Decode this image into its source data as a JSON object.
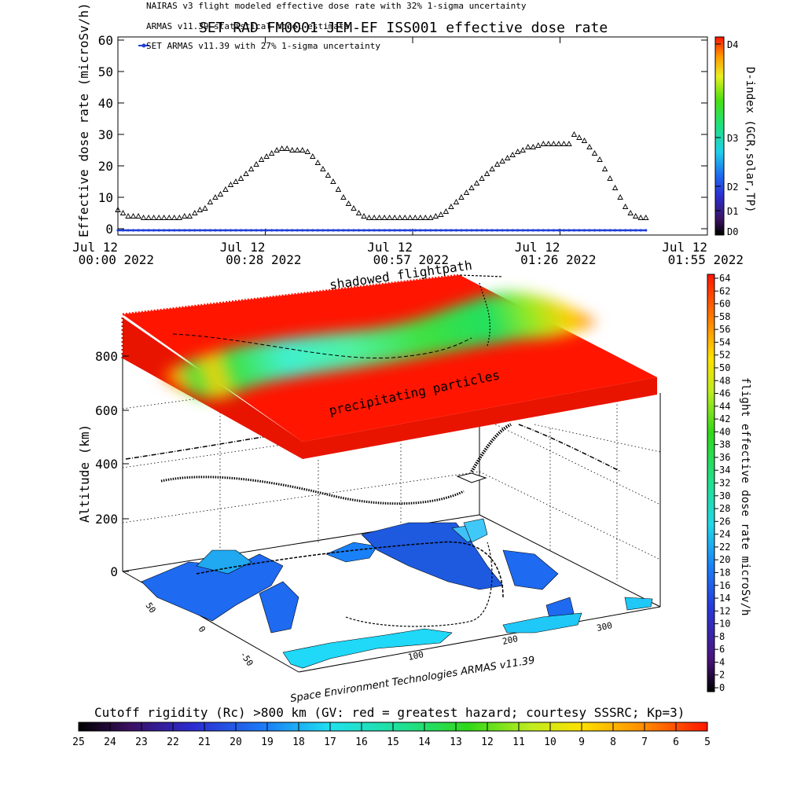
{
  "header": {
    "line1": "NAIRAS v3 flight modeled effective dose rate with 32% 1-sigma uncertainty",
    "line2": "ARMAS v11.39 statistical model estimate",
    "line3": "SET ARMAS v11.39 with 27% 1-sigma uncertainty",
    "title": "SET RAD FM0001 JEM-EF ISS001 effective dose rate"
  },
  "annotations": {
    "shadowed": "shadowed flightpath",
    "precip": "precipitating particles",
    "credit": "Space Environment Technologies ARMAS v11.39"
  },
  "colors": {
    "dose_marker": "#1f3fd8",
    "surface_red": "#ff1500"
  },
  "chart_data": [
    {
      "type": "scatter",
      "title": "SET RAD FM0001 JEM-EF ISS001 effective dose rate",
      "ylabel": "Effective dose rate (microSv/h)",
      "ylim": [
        -2,
        61
      ],
      "yticks": [
        "0",
        "10",
        "20",
        "30",
        "40",
        "50",
        "60"
      ],
      "xlim_minutes": [
        0,
        115
      ],
      "x_ticks": [
        {
          "l1": "Jul 12",
          "l2": "00:00 2022"
        },
        {
          "l1": "Jul 12",
          "l2": "00:28 2022"
        },
        {
          "l1": "Jul 12",
          "l2": "00:57 2022"
        },
        {
          "l1": "Jul 12",
          "l2": "01:26 2022"
        },
        {
          "l1": "Jul 12",
          "l2": "01:55 2022"
        }
      ],
      "series": [
        {
          "name": "NAIRAS v3 flight modeled effective dose rate with 32% 1-sigma uncertainty",
          "marker": "triangle",
          "x_minutes": [
            0,
            1,
            2,
            3,
            4,
            5,
            6,
            7,
            8,
            9,
            10,
            11,
            12,
            13,
            14,
            15,
            16,
            17,
            18,
            19,
            20,
            21,
            22,
            23,
            24,
            25,
            26,
            27,
            28,
            29,
            30,
            31,
            32,
            33,
            34,
            35,
            36,
            37,
            38,
            39,
            40,
            41,
            42,
            43,
            44,
            45,
            46,
            47,
            48,
            49,
            50,
            51,
            52,
            53,
            54,
            55,
            56,
            57,
            58,
            59,
            60,
            61,
            62,
            63,
            64,
            65,
            66,
            67,
            68,
            69,
            70,
            71,
            72,
            73,
            74,
            75,
            76,
            77,
            78,
            79,
            80,
            81,
            82,
            83,
            84,
            85,
            86,
            87,
            88,
            89,
            90,
            91,
            92,
            93,
            94,
            95,
            96,
            97,
            98,
            99,
            100,
            101,
            102,
            103
          ],
          "y": [
            6,
            5,
            4,
            4,
            4,
            3.5,
            3.5,
            3.5,
            3.5,
            3.5,
            3.5,
            3.5,
            3.5,
            4,
            4,
            5,
            6,
            6.5,
            8.5,
            10,
            11,
            12.5,
            14,
            15,
            16,
            17.5,
            19,
            20.5,
            22,
            23,
            24,
            25,
            25.5,
            25.5,
            25,
            25,
            25,
            24.5,
            23,
            21,
            19,
            17,
            15,
            12.5,
            10,
            8,
            6.5,
            5,
            4,
            3.5,
            3.5,
            3.5,
            3.5,
            3.5,
            3.5,
            3.5,
            3.5,
            3.5,
            3.5,
            3.5,
            3.5,
            3.5,
            4,
            4.5,
            5.5,
            7,
            8.5,
            10,
            11.5,
            13,
            14.5,
            16,
            17.5,
            19,
            20.5,
            21.5,
            22.5,
            23.5,
            24.5,
            25,
            26,
            26,
            26.5,
            27,
            27,
            27,
            27,
            27,
            27,
            30,
            29,
            28,
            26,
            24,
            22,
            19,
            16,
            13,
            10,
            7,
            5,
            4,
            3.5,
            3.5
          ]
        },
        {
          "name": "SET ARMAS v11.39 with 27% 1-sigma uncertainty",
          "marker": "dot",
          "y_constant": -0.5,
          "x_range_minutes": [
            0,
            103
          ]
        }
      ],
      "colorbar": {
        "label": "D-index (GCR,solar,TP)",
        "labels": [
          "D0",
          "D1",
          "D2",
          "D3",
          "D4"
        ],
        "values": [
          0,
          1,
          2,
          3,
          4
        ]
      }
    },
    {
      "type": "surface3d",
      "zlabel": "Altitude (km)",
      "zticks": [
        "0",
        "200",
        "400",
        "600",
        "800"
      ],
      "lat_ticks": [
        "50",
        "0",
        "-50"
      ],
      "lon_ticks": [
        "100",
        "200",
        "300"
      ],
      "surface_altitude_km": 800,
      "colorbar": {
        "label": "flight effective dose rate microSv/h",
        "min": 0,
        "max": 64,
        "ticks": [
          "0",
          "2",
          "4",
          "6",
          "8",
          "10",
          "12",
          "14",
          "16",
          "18",
          "20",
          "22",
          "24",
          "26",
          "28",
          "30",
          "32",
          "34",
          "36",
          "38",
          "40",
          "42",
          "44",
          "46",
          "48",
          "50",
          "52",
          "54",
          "56",
          "58",
          "60",
          "62",
          "64"
        ]
      }
    },
    {
      "type": "colorbar",
      "label": "Cutoff rigidity (Rc) >800 km (GV: red = greatest hazard; courtesy SSSRC; Kp=3)",
      "ticks": [
        "25",
        "24",
        "23",
        "22",
        "21",
        "20",
        "19",
        "18",
        "17",
        "16",
        "15",
        "14",
        "13",
        "12",
        "11",
        "10",
        "9",
        "8",
        "7",
        "6",
        "5"
      ]
    }
  ]
}
